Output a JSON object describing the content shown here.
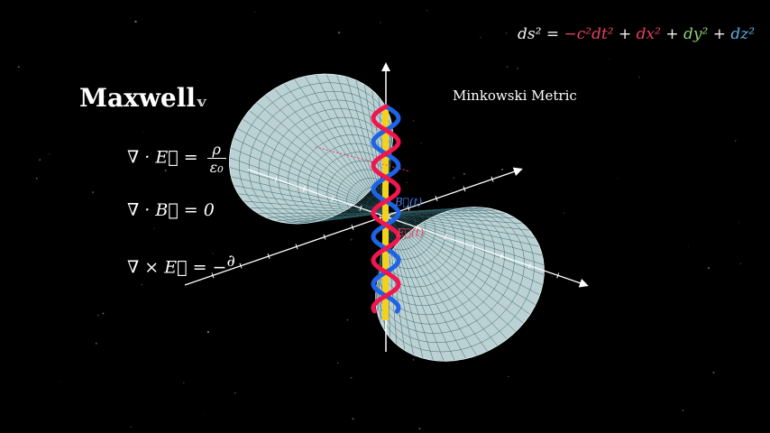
{
  "title": {
    "text": "Maxwell",
    "ghost_suffix": "ᵥ"
  },
  "equations": {
    "gauss_e": {
      "lhs": "∇ · E⃗ =",
      "num": "ρ",
      "den": "ε₀"
    },
    "gauss_b": {
      "text": "∇ · B⃗ = 0"
    },
    "faraday": {
      "text": "∇ × E⃗ = −",
      "partial": "∂"
    }
  },
  "metric": {
    "label": "Minkowski Metric",
    "lhs": "ds² =",
    "term_t": "−c²dt²",
    "plus1": "+",
    "term_x": "dx²",
    "plus2": "+",
    "term_y": "dy²",
    "plus3": "+",
    "term_z": "dz²"
  },
  "field_labels": {
    "b_label": "B⃗(t)",
    "e_label": "E⃗(t)"
  },
  "colors": {
    "background": "#000000",
    "cone_fill": "#cfe8ea",
    "cone_grid": "#2f5f66",
    "wave_red": "#f0164f",
    "wave_blue": "#1e63e6",
    "time_axis": "#f4d21a",
    "axis": "#ffffff"
  }
}
